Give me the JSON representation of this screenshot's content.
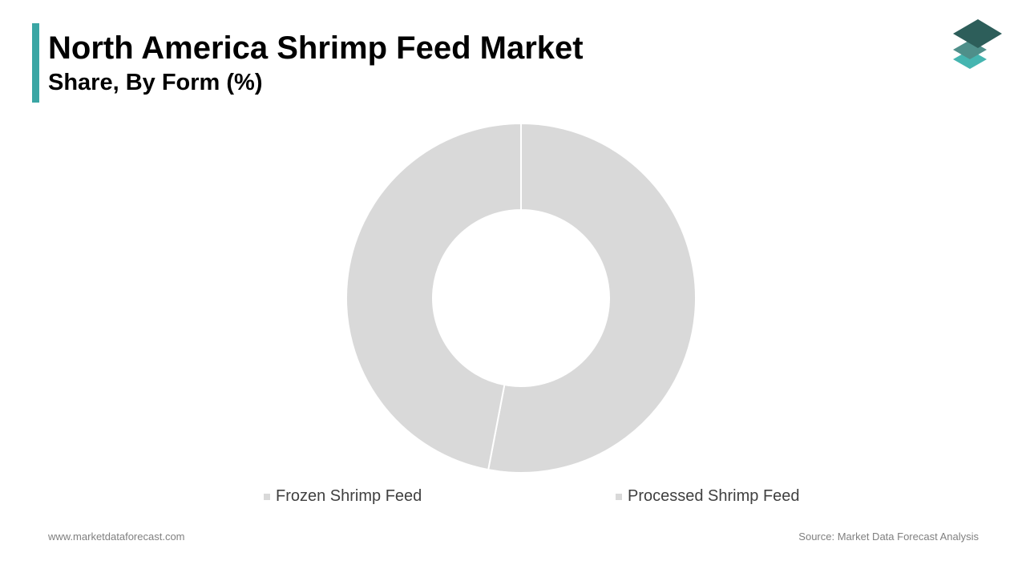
{
  "header": {
    "title": "North America Shrimp Feed Market",
    "subtitle": "Share, By Form (%)",
    "accent_color": "#3aa6a4"
  },
  "logo": {
    "icon": "stacked-layers-icon",
    "colors": [
      "#2d5e5a",
      "#4f8f8a",
      "#45b5b0"
    ]
  },
  "chart_data": {
    "type": "pie",
    "style": "donut",
    "categories": [
      "Frozen Shrimp Feed",
      "Processed Shrimp Feed"
    ],
    "values": [
      53,
      47
    ],
    "colors": [
      "#d9d9d9",
      "#d9d9d9"
    ],
    "start_angle": "top",
    "direction": "clockwise",
    "legend": "bottom"
  },
  "legend": {
    "items": [
      {
        "label": "Frozen Shrimp Feed"
      },
      {
        "label": "Processed Shrimp Feed"
      }
    ]
  },
  "footer": {
    "website": "www.marketdataforecast.com",
    "source": "Source: Market Data Forecast Analysis"
  }
}
